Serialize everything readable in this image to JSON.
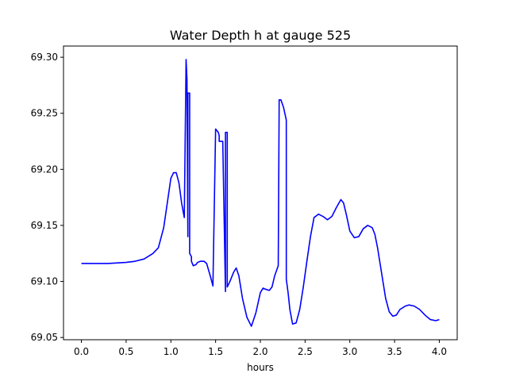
{
  "chart_data": {
    "type": "line",
    "title": "Water Depth h at gauge 525",
    "xlabel": "hours",
    "ylabel": "",
    "xlim": [
      -0.2,
      4.2
    ],
    "ylim": [
      69.048,
      69.31
    ],
    "x_ticks": [
      {
        "value": 0.0,
        "label": "0.0"
      },
      {
        "value": 0.5,
        "label": "0.5"
      },
      {
        "value": 1.0,
        "label": "1.0"
      },
      {
        "value": 1.5,
        "label": "1.5"
      },
      {
        "value": 2.0,
        "label": "2.0"
      },
      {
        "value": 2.5,
        "label": "2.5"
      },
      {
        "value": 3.0,
        "label": "3.0"
      },
      {
        "value": 3.5,
        "label": "3.5"
      },
      {
        "value": 4.0,
        "label": "4.0"
      }
    ],
    "y_ticks": [
      {
        "value": 69.05,
        "label": "69.05"
      },
      {
        "value": 69.1,
        "label": "69.10"
      },
      {
        "value": 69.15,
        "label": "69.15"
      },
      {
        "value": 69.2,
        "label": "69.20"
      },
      {
        "value": 69.25,
        "label": "69.25"
      },
      {
        "value": 69.3,
        "label": "69.30"
      }
    ],
    "grid": false,
    "legend": "none",
    "series": [
      {
        "color": "#0000ff",
        "x": [
          0.0,
          0.3,
          0.5,
          0.6,
          0.7,
          0.8,
          0.86,
          0.92,
          0.96,
          1.0,
          1.03,
          1.06,
          1.09,
          1.12,
          1.15,
          1.17,
          1.18,
          1.19,
          1.19,
          1.21,
          1.21,
          1.23,
          1.23,
          1.25,
          1.28,
          1.3,
          1.33,
          1.37,
          1.4,
          1.44,
          1.47,
          1.5,
          1.53,
          1.54,
          1.54,
          1.58,
          1.61,
          1.61,
          1.63,
          1.63,
          1.66,
          1.7,
          1.73,
          1.76,
          1.8,
          1.85,
          1.9,
          1.95,
          2.0,
          2.03,
          2.06,
          2.1,
          2.13,
          2.16,
          2.2,
          2.21,
          2.21,
          2.23,
          2.26,
          2.29,
          2.29,
          2.31,
          2.33,
          2.36,
          2.4,
          2.44,
          2.48,
          2.52,
          2.56,
          2.6,
          2.65,
          2.7,
          2.75,
          2.8,
          2.85,
          2.9,
          2.93,
          2.96,
          3.0,
          3.05,
          3.1,
          3.15,
          3.2,
          3.25,
          3.28,
          3.31,
          3.36,
          3.4,
          3.44,
          3.48,
          3.52,
          3.56,
          3.62,
          3.66,
          3.72,
          3.78,
          3.84,
          3.9,
          3.96,
          4.0
        ],
        "values": [
          69.116,
          69.116,
          69.117,
          69.118,
          69.12,
          69.125,
          69.13,
          69.148,
          69.17,
          69.192,
          69.197,
          69.197,
          69.188,
          69.17,
          69.157,
          69.298,
          69.28,
          69.14,
          69.268,
          69.268,
          69.125,
          69.122,
          69.118,
          69.114,
          69.115,
          69.117,
          69.118,
          69.118,
          69.116,
          69.105,
          69.096,
          69.236,
          69.233,
          69.23,
          69.225,
          69.225,
          69.091,
          69.233,
          69.233,
          69.095,
          69.1,
          69.108,
          69.112,
          69.105,
          69.085,
          69.068,
          69.06,
          69.072,
          69.09,
          69.094,
          69.093,
          69.092,
          69.095,
          69.105,
          69.114,
          69.257,
          69.262,
          69.262,
          69.255,
          69.244,
          69.102,
          69.09,
          69.075,
          69.062,
          69.063,
          69.075,
          69.095,
          69.118,
          69.14,
          69.157,
          69.16,
          69.158,
          69.155,
          69.158,
          69.166,
          69.173,
          69.17,
          69.16,
          69.145,
          69.139,
          69.14,
          69.147,
          69.15,
          69.148,
          69.142,
          69.13,
          69.105,
          69.085,
          69.073,
          69.069,
          69.07,
          69.075,
          69.078,
          69.079,
          69.078,
          69.075,
          69.07,
          69.066,
          69.065,
          69.066
        ]
      }
    ]
  }
}
